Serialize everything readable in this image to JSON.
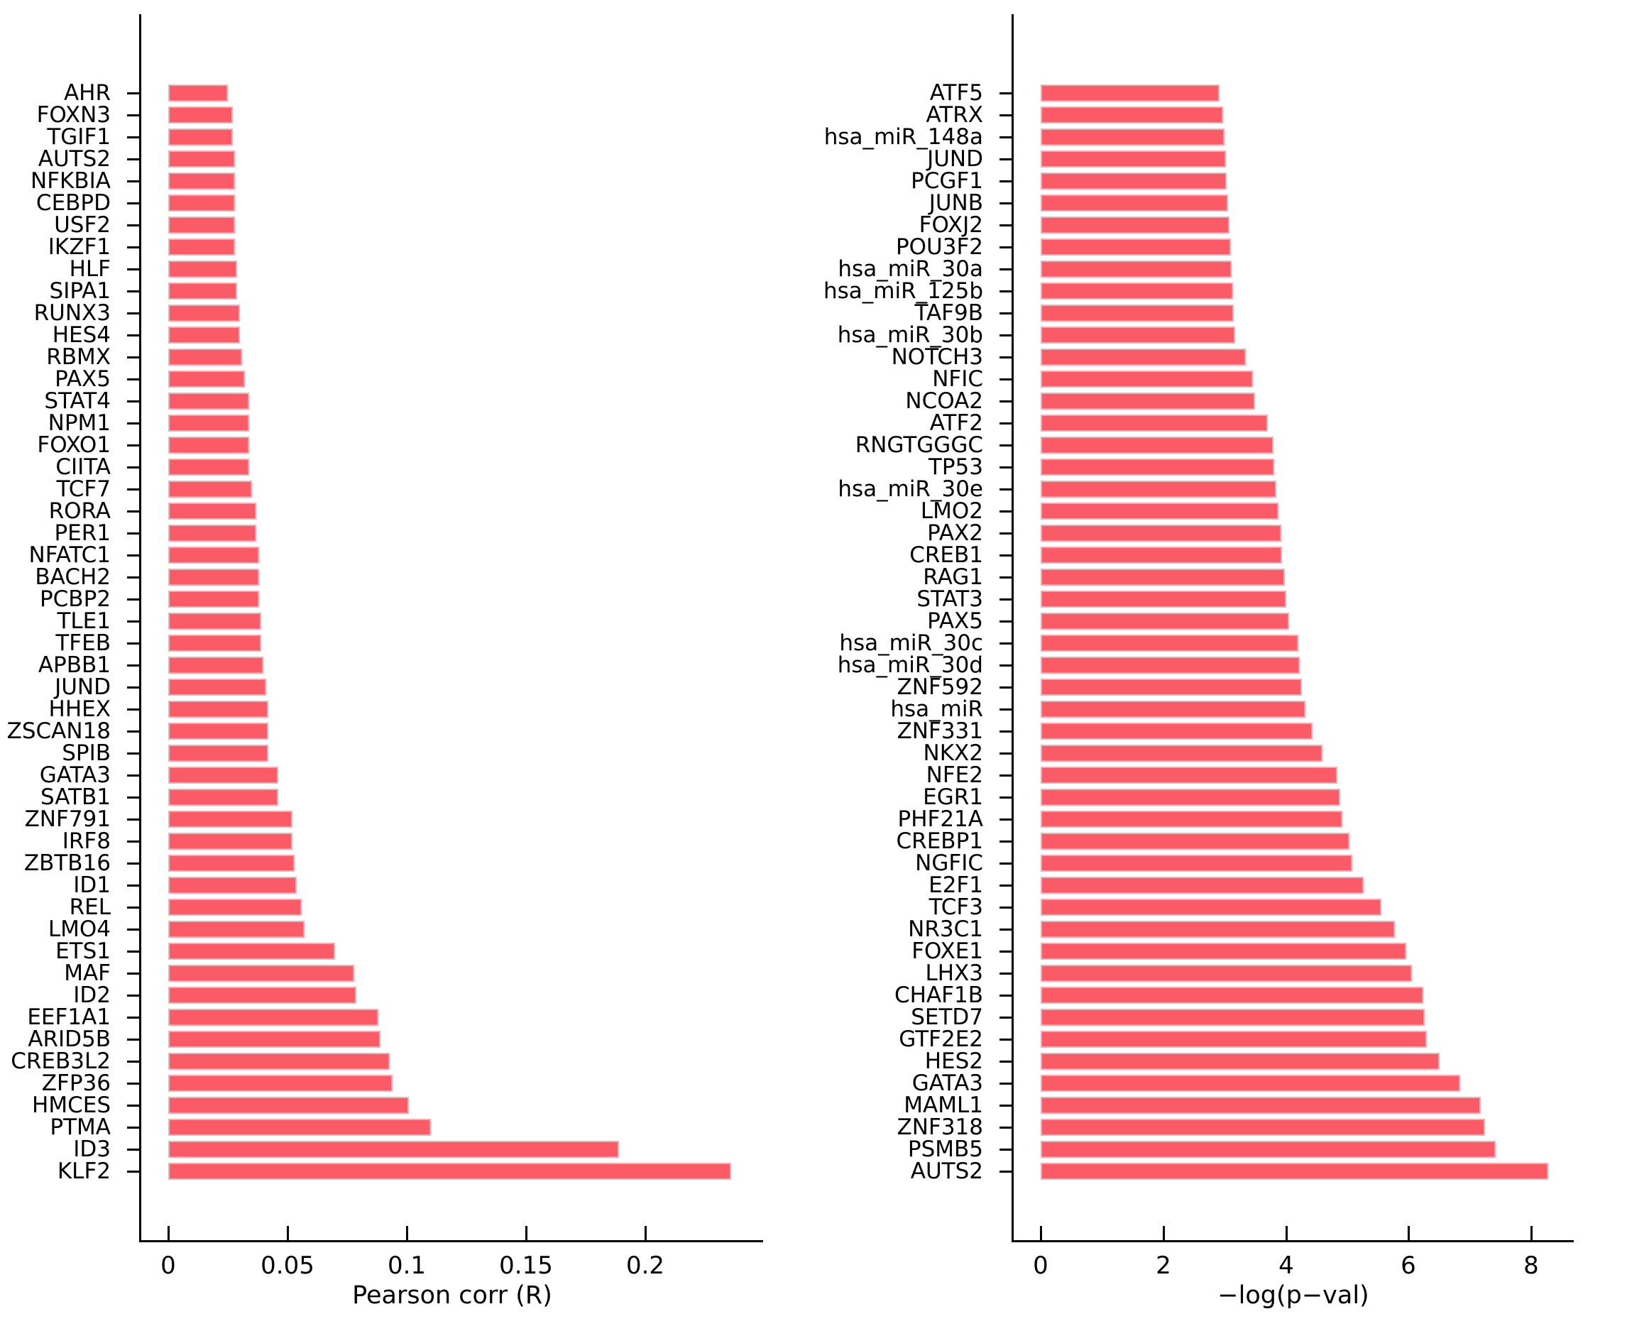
{
  "figure": {
    "background": "#ffffff",
    "bar_fill": "#fb5b67",
    "bar_border": "#fcabb3",
    "axis_color": "#000000",
    "text_color": "#000000"
  },
  "chart_data": [
    {
      "id": "pearson-chart",
      "type": "bar",
      "orientation": "horizontal",
      "title": "",
      "xlabel": "Pearson corr (R)",
      "ylabel": "",
      "xlim": [
        0,
        0.25
      ],
      "grid": false,
      "legend": "none",
      "xticks": [
        0,
        0.05,
        0.1,
        0.15,
        0.2
      ],
      "xtick_labels": [
        "0",
        "0.05",
        "0.1",
        "0.15",
        "0.2"
      ],
      "categories": [
        "AHR",
        "FOXN3",
        "TGIF1",
        "AUTS2",
        "NFKBIA",
        "CEBPD",
        "USF2",
        "IKZF1",
        "HLF",
        "SIPA1",
        "RUNX3",
        "HES4",
        "RBMX",
        "PAX5",
        "STAT4",
        "NPM1",
        "FOXO1",
        "CIITA",
        "TCF7",
        "RORA",
        "PER1",
        "NFATC1",
        "BACH2",
        "PCBP2",
        "TLE1",
        "TFEB",
        "APBB1",
        "JUND",
        "HHEX",
        "ZSCAN18",
        "SPIB",
        "GATA3",
        "SATB1",
        "ZNF791",
        "IRF8",
        "ZBTB16",
        "ID1",
        "REL",
        "LMO4",
        "ETS1",
        "MAF",
        "ID2",
        "EEF1A1",
        "ARID5B",
        "CREB3L2",
        "ZFP36",
        "HMCES",
        "PTMA",
        "ID3",
        "KLF2"
      ],
      "values": [
        0.025,
        0.027,
        0.027,
        0.028,
        0.028,
        0.028,
        0.028,
        0.028,
        0.029,
        0.029,
        0.03,
        0.03,
        0.031,
        0.032,
        0.034,
        0.034,
        0.034,
        0.034,
        0.035,
        0.037,
        0.037,
        0.038,
        0.038,
        0.038,
        0.039,
        0.039,
        0.04,
        0.041,
        0.042,
        0.042,
        0.042,
        0.046,
        0.046,
        0.052,
        0.052,
        0.053,
        0.054,
        0.056,
        0.057,
        0.07,
        0.078,
        0.079,
        0.088,
        0.089,
        0.093,
        0.094,
        0.101,
        0.11,
        0.189,
        0.236
      ]
    },
    {
      "id": "pval-chart",
      "type": "bar",
      "orientation": "horizontal",
      "title": "",
      "xlabel": "−log(p−val)",
      "ylabel": "",
      "xlim": [
        0,
        9.2
      ],
      "grid": false,
      "legend": "none",
      "xticks": [
        0,
        2,
        4,
        6,
        8
      ],
      "xtick_labels": [
        "0",
        "2",
        "4",
        "6",
        "8"
      ],
      "categories": [
        "ATF5",
        "ATRX",
        "hsa_miR_148a",
        "JUND",
        "PCGF1",
        "JUNB",
        "FOXJ2",
        "POU3F2",
        "hsa_miR_30a",
        "hsa_miR_125b",
        "TAF9B",
        "hsa_miR_30b",
        "NOTCH3",
        "NFIC",
        "NCOA2",
        "ATF2",
        "RNGTGGGC",
        "TP53",
        "hsa_miR_30e",
        "LMO2",
        "PAX2",
        "CREB1",
        "RAG1",
        "STAT3",
        "PAX5",
        "hsa_miR_30c",
        "hsa_miR_30d",
        "ZNF592",
        "hsa_miR",
        "ZNF331",
        "NKX2",
        "NFE2",
        "EGR1",
        "PHF21A",
        "CREBP1",
        "NGFIC",
        "E2F1",
        "TCF3",
        "NR3C1",
        "FOXE1",
        "LHX3",
        "CHAF1B",
        "SETD7",
        "GTF2E2",
        "HES2",
        "GATA3",
        "MAML1",
        "ZNF318",
        "PSMB5",
        "AUTS2"
      ],
      "values": [
        2.92,
        2.97,
        3.0,
        3.02,
        3.03,
        3.05,
        3.08,
        3.1,
        3.11,
        3.14,
        3.15,
        3.17,
        3.35,
        3.46,
        3.5,
        3.7,
        3.8,
        3.81,
        3.84,
        3.88,
        3.92,
        3.93,
        3.98,
        4.01,
        4.05,
        4.2,
        4.23,
        4.26,
        4.32,
        4.43,
        4.6,
        4.84,
        4.88,
        4.92,
        5.04,
        5.08,
        5.27,
        5.55,
        5.78,
        5.96,
        6.05,
        6.24,
        6.26,
        6.3,
        6.51,
        6.84,
        7.18,
        7.25,
        7.42,
        8.27
      ]
    }
  ]
}
